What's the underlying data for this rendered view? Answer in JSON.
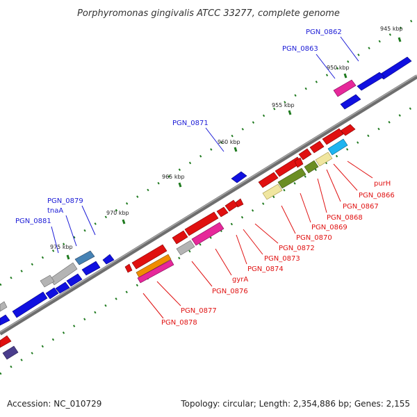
{
  "title": "Porphyromonas gingivalis ATCC 33277, complete genome",
  "footer": {
    "accession": "Accession: NC_010729",
    "summary": "Topology: circular; Length: 2,354,886 bp; Genes: 2,155"
  },
  "colors": {
    "plus_label": "#1a1ad6",
    "minus_label": "#e01010",
    "backbone": "#777777",
    "tick": "#1f7a1f"
  },
  "scale_labels": [
    "945 kbp",
    "950 kbp",
    "955 kbp",
    "960 kbp",
    "965 kbp",
    "970 kbp",
    "975 kbp"
  ],
  "plus_strand_labels": [
    "PGN_0862",
    "PGN_0863",
    "PGN_0871",
    "PGN_0879",
    "tnaA",
    "PGN_0881"
  ],
  "minus_strand_labels": [
    "purH",
    "PGN_0866",
    "PGN_0867",
    "PGN_0868",
    "PGN_0869",
    "PGN_0870",
    "PGN_0872",
    "PGN_0873",
    "PGN_0874",
    "gyrA",
    "PGN_0876",
    "PGN_0877",
    "PGN_0878"
  ]
}
